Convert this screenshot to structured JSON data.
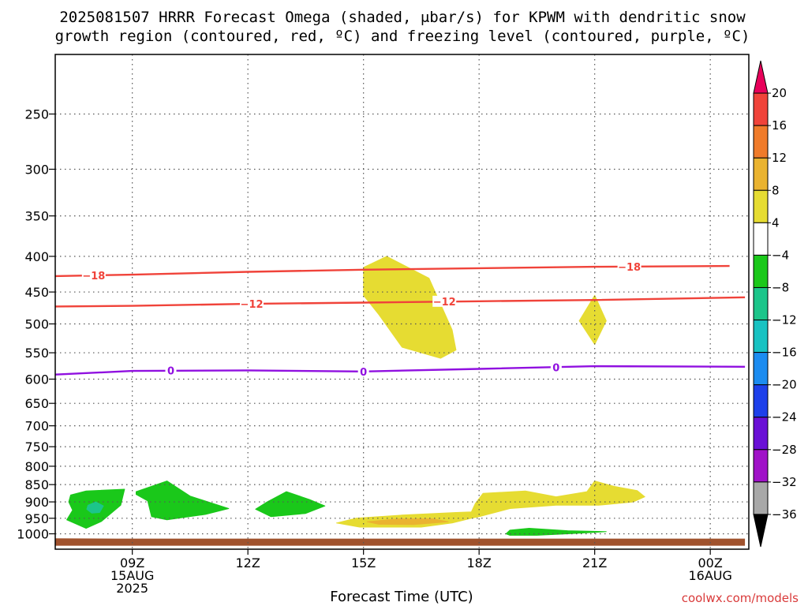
{
  "title": {
    "line1": "2025081507 HRRR Forecast Omega (shaded, μbar/s) for KPWM with dendritic snow",
    "line2": "growth region (contoured, red, ºC) and freezing level (contoured, purple, ºC)"
  },
  "credit": "coolwx.com/models",
  "chart_data": {
    "type": "area",
    "title": "2025081507 HRRR Forecast Omega (shaded, μbar/s) for KPWM with dendritic snow growth region (contoured, red, ºC) and freezing level (contoured, purple, ºC)",
    "xlabel": "Forecast Time (UTC)",
    "ylabel": "",
    "xlim": [
      7,
      25
    ],
    "ylim": [
      1030,
      200
    ],
    "x_ticks": [
      {
        "x": 9,
        "lines": [
          "09Z",
          "15AUG",
          "2025"
        ]
      },
      {
        "x": 12,
        "lines": [
          "12Z"
        ]
      },
      {
        "x": 15,
        "lines": [
          "15Z"
        ]
      },
      {
        "x": 18,
        "lines": [
          "18Z"
        ]
      },
      {
        "x": 21,
        "lines": [
          "21Z"
        ]
      },
      {
        "x": 24,
        "lines": [
          "00Z",
          "16AUG"
        ]
      }
    ],
    "y_ticks": [
      250,
      300,
      350,
      400,
      450,
      500,
      550,
      600,
      650,
      700,
      750,
      800,
      850,
      900,
      950,
      1000
    ],
    "grid": true,
    "colorbar": {
      "labels": [
        "20",
        "16",
        "12",
        "8",
        "4",
        "−4",
        "−8",
        "−12",
        "−16",
        "−20",
        "−24",
        "−28",
        "−32",
        "−36"
      ],
      "bins": [
        {
          "color": "#e8005a",
          "type": "triangle-up"
        },
        {
          "color": "#f0433a"
        },
        {
          "color": "#f07b2a"
        },
        {
          "color": "#eab330"
        },
        {
          "color": "#e6dc32"
        },
        {
          "color": "#ffffff"
        },
        {
          "color": "#1ac81a"
        },
        {
          "color": "#1cc58a"
        },
        {
          "color": "#18c2c2"
        },
        {
          "color": "#1c8cf0"
        },
        {
          "color": "#1e40ea"
        },
        {
          "color": "#6a10d6"
        },
        {
          "color": "#a012c8"
        },
        {
          "color": "#a8a8a8"
        },
        {
          "color": "#000000",
          "type": "triangle-down"
        }
      ]
    },
    "contours": [
      {
        "name": "dgz-top",
        "label": "−18",
        "color": "#f0433a",
        "points": [
          [
            7.0,
            427
          ],
          [
            9.0,
            425
          ],
          [
            12.0,
            421
          ],
          [
            15.0,
            418
          ],
          [
            18.0,
            416
          ],
          [
            21.0,
            414
          ],
          [
            24.5,
            413
          ]
        ],
        "label_at": [
          [
            8.0,
            426
          ],
          [
            21.9,
            414
          ]
        ]
      },
      {
        "name": "dgz-bottom",
        "label": "−12",
        "color": "#f0433a",
        "points": [
          [
            7.0,
            472
          ],
          [
            9.0,
            471
          ],
          [
            12.0,
            468
          ],
          [
            15.0,
            466
          ],
          [
            18.0,
            464
          ],
          [
            21.0,
            462
          ],
          [
            24.9,
            458
          ]
        ],
        "label_at": [
          [
            12.1,
            468
          ],
          [
            17.1,
            464
          ]
        ]
      },
      {
        "name": "freezing-level",
        "label": "0",
        "color": "#9010e0",
        "points": [
          [
            7.0,
            591
          ],
          [
            9.0,
            584
          ],
          [
            12.0,
            583
          ],
          [
            15.0,
            585
          ],
          [
            18.0,
            580
          ],
          [
            21.0,
            575
          ],
          [
            24.9,
            576
          ]
        ],
        "label_at": [
          [
            10.0,
            583
          ],
          [
            15.0,
            585
          ],
          [
            20.0,
            577
          ]
        ]
      }
    ],
    "regions": [
      {
        "name": "upward-motion-mid",
        "color": "#e6dc32",
        "points": [
          [
            15.0,
            415
          ],
          [
            15.6,
            400
          ],
          [
            16.7,
            430
          ],
          [
            17.3,
            510
          ],
          [
            17.4,
            545
          ],
          [
            17.0,
            560
          ],
          [
            16.0,
            540
          ],
          [
            15.4,
            485
          ],
          [
            15.0,
            455
          ]
        ]
      },
      {
        "name": "upward-motion-21z",
        "color": "#e6dc32",
        "points": [
          [
            20.6,
            495
          ],
          [
            21.0,
            455
          ],
          [
            21.3,
            495
          ],
          [
            21.0,
            535
          ]
        ]
      },
      {
        "name": "upward-motion-low",
        "color": "#e6dc32",
        "points": [
          [
            14.3,
            965
          ],
          [
            14.8,
            950
          ],
          [
            16.0,
            940
          ],
          [
            17.4,
            932
          ],
          [
            17.8,
            930
          ],
          [
            17.9,
            905
          ],
          [
            18.1,
            875
          ],
          [
            19.2,
            868
          ],
          [
            20.0,
            885
          ],
          [
            20.8,
            870
          ],
          [
            21.0,
            840
          ],
          [
            21.5,
            855
          ],
          [
            22.1,
            867
          ],
          [
            22.3,
            885
          ],
          [
            22.0,
            900
          ],
          [
            21.1,
            910
          ],
          [
            20.0,
            910
          ],
          [
            18.8,
            920
          ],
          [
            18.0,
            945
          ],
          [
            17.8,
            950
          ],
          [
            17.3,
            965
          ],
          [
            16.5,
            978
          ],
          [
            14.9,
            978
          ]
        ]
      },
      {
        "name": "upward-motion-low-core",
        "color": "#eab330",
        "points": [
          [
            15.1,
            961
          ],
          [
            15.9,
            952
          ],
          [
            16.8,
            952
          ],
          [
            17.2,
            961
          ],
          [
            16.3,
            970
          ],
          [
            15.4,
            969
          ]
        ]
      },
      {
        "name": "downward-motion-1",
        "color": "#1ac81a",
        "points": [
          [
            7.4,
            880
          ],
          [
            7.8,
            868
          ],
          [
            8.8,
            863
          ],
          [
            8.7,
            910
          ],
          [
            8.2,
            960
          ],
          [
            7.8,
            982
          ],
          [
            7.3,
            955
          ],
          [
            7.45,
            925
          ],
          [
            7.35,
            900
          ]
        ]
      },
      {
        "name": "downward-motion-1-core",
        "color": "#1cc58a",
        "points": [
          [
            7.85,
            910
          ],
          [
            8.05,
            900
          ],
          [
            8.25,
            912
          ],
          [
            8.15,
            932
          ],
          [
            7.95,
            934
          ],
          [
            7.82,
            922
          ]
        ]
      },
      {
        "name": "downward-motion-2",
        "color": "#1ac81a",
        "points": [
          [
            9.1,
            870
          ],
          [
            9.9,
            840
          ],
          [
            10.5,
            883
          ],
          [
            11.5,
            920
          ],
          [
            10.9,
            938
          ],
          [
            9.9,
            955
          ],
          [
            9.5,
            945
          ],
          [
            9.4,
            897
          ],
          [
            9.1,
            878
          ]
        ]
      },
      {
        "name": "downward-motion-3",
        "color": "#1ac81a",
        "points": [
          [
            12.2,
            922
          ],
          [
            12.5,
            900
          ],
          [
            13.0,
            870
          ],
          [
            13.6,
            893
          ],
          [
            14.0,
            912
          ],
          [
            13.5,
            935
          ],
          [
            12.6,
            945
          ]
        ]
      },
      {
        "name": "downward-motion-4",
        "color": "#1ac81a",
        "points": [
          [
            18.7,
            1000
          ],
          [
            18.8,
            988
          ],
          [
            19.3,
            982
          ],
          [
            20.3,
            990
          ],
          [
            21.3,
            993
          ],
          [
            20.3,
            1000
          ],
          [
            19.5,
            1005
          ],
          [
            18.8,
            1005
          ]
        ]
      }
    ],
    "terrain": {
      "name": "surface",
      "color": "#a0522d",
      "points": [
        [
          7.0,
          1015
        ],
        [
          8.6,
          1016
        ],
        [
          24.9,
          1016
        ],
        [
          24.9,
          1040
        ],
        [
          7.0,
          1040
        ]
      ]
    }
  }
}
